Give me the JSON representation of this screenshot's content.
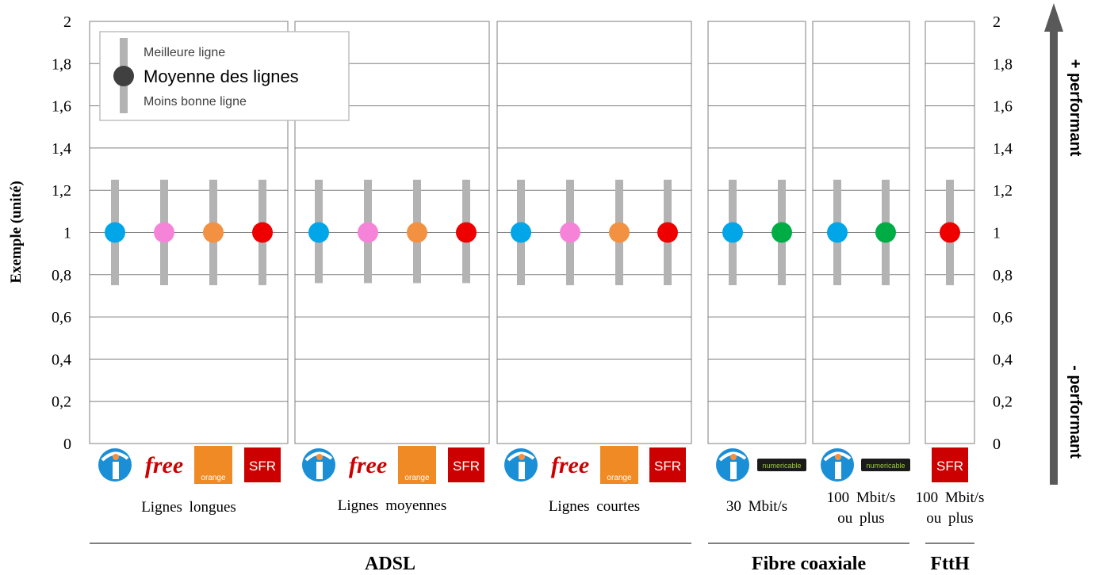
{
  "chart_data": {
    "type": "scatter",
    "ylabel": "Exemple (unité)",
    "ylim": [
      0,
      2
    ],
    "yticks": [
      "0",
      "0,2",
      "0,4",
      "0,6",
      "0,8",
      "1",
      "1,2",
      "1,4",
      "1,6",
      "1,8",
      "2"
    ],
    "ytick_values": [
      0,
      0.2,
      0.4,
      0.6,
      0.8,
      1,
      1.2,
      1.4,
      1.6,
      1.8,
      2
    ],
    "grid": true,
    "legend": {
      "position": "top-left",
      "best": "Meilleure ligne",
      "mean": "Moyenne des lignes",
      "worst": "Moins bonne ligne"
    },
    "arrow": {
      "top": "+ performant",
      "bottom": "- performant"
    },
    "colors": {
      "bouygues": "#00a6e8",
      "free": "#f584d8",
      "orange": "#f39142",
      "sfr": "#ee0000",
      "numericable": "#00ad45",
      "range": "#b3b3b3",
      "legend_dot": "#404040"
    },
    "groups": [
      {
        "category": "Lignes longues",
        "points": [
          {
            "operator": "bouygues",
            "logo_text": "",
            "mean": 1,
            "min": 0.75,
            "max": 1.25
          },
          {
            "operator": "free",
            "logo_text": "free",
            "mean": 1,
            "min": 0.75,
            "max": 1.25
          },
          {
            "operator": "orange",
            "logo_text": "orange",
            "mean": 1,
            "min": 0.75,
            "max": 1.25
          },
          {
            "operator": "sfr",
            "logo_text": "SFR",
            "mean": 1,
            "min": 0.75,
            "max": 1.25
          }
        ]
      },
      {
        "category": "Lignes moyennes",
        "points": [
          {
            "operator": "bouygues",
            "logo_text": "",
            "mean": 1,
            "min": 0.76,
            "max": 1.25
          },
          {
            "operator": "free",
            "logo_text": "free",
            "mean": 1,
            "min": 0.76,
            "max": 1.25
          },
          {
            "operator": "orange",
            "logo_text": "orange",
            "mean": 1,
            "min": 0.76,
            "max": 1.25
          },
          {
            "operator": "sfr",
            "logo_text": "SFR",
            "mean": 1,
            "min": 0.76,
            "max": 1.25
          }
        ]
      },
      {
        "category": "Lignes courtes",
        "points": [
          {
            "operator": "bouygues",
            "logo_text": "",
            "mean": 1,
            "min": 0.75,
            "max": 1.25
          },
          {
            "operator": "free",
            "logo_text": "free",
            "mean": 1,
            "min": 0.75,
            "max": 1.25
          },
          {
            "operator": "orange",
            "logo_text": "orange",
            "mean": 1,
            "min": 0.75,
            "max": 1.25
          },
          {
            "operator": "sfr",
            "logo_text": "SFR",
            "mean": 1,
            "min": 0.75,
            "max": 1.25
          }
        ]
      },
      {
        "category": "30 Mbit/s",
        "points": [
          {
            "operator": "bouygues",
            "logo_text": "",
            "mean": 1,
            "min": 0.75,
            "max": 1.25
          },
          {
            "operator": "numericable",
            "logo_text": "numericable",
            "mean": 1,
            "min": 0.75,
            "max": 1.25
          }
        ]
      },
      {
        "category": "100 Mbit/s ou plus",
        "points": [
          {
            "operator": "bouygues",
            "logo_text": "",
            "mean": 1,
            "min": 0.75,
            "max": 1.25
          },
          {
            "operator": "numericable",
            "logo_text": "numericable",
            "mean": 1,
            "min": 0.75,
            "max": 1.25
          }
        ]
      },
      {
        "category": "100 Mbit/s ou plus",
        "points": [
          {
            "operator": "sfr",
            "logo_text": "SFR",
            "mean": 1,
            "min": 0.75,
            "max": 1.25
          }
        ]
      }
    ],
    "sections": [
      {
        "label": "ADSL",
        "groups": [
          0,
          1,
          2
        ]
      },
      {
        "label": "Fibre coaxiale",
        "groups": [
          3,
          4
        ]
      },
      {
        "label": "FttH",
        "groups": [
          5
        ]
      }
    ]
  }
}
